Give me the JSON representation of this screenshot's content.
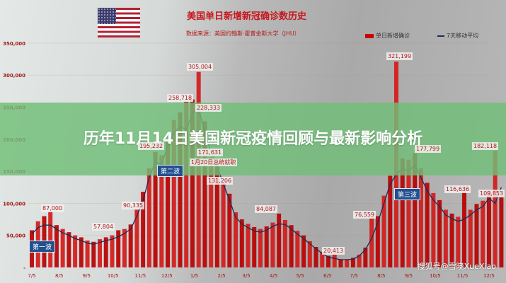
{
  "banner": {
    "title": "历年11月14日美国新冠疫情回顾与最新影响分析"
  },
  "watermark": "搜狐号@雪晓XueXiao",
  "chart_data": {
    "type": "bar",
    "title": "美国单日新增新冠确诊数历史",
    "subtitle": "数据来源：美国约翰斯·霍普金斯大学（JHU）",
    "legend": [
      "单日新增确诊",
      "7天移动平均"
    ],
    "legend_position": "top-right",
    "colors": {
      "bars": "#cc0000",
      "avg_line": "#1e2b5a"
    },
    "yticks": [
      "350,000",
      "300,000",
      "250,000",
      "200,000",
      "150,000",
      "100,000",
      "50,000",
      "-"
    ],
    "ylim": [
      0,
      350000
    ],
    "xticks": [
      "7/5",
      "8/5",
      "9/5",
      "10/5",
      "11/5",
      "12/5",
      "1/5",
      "2/5",
      "3/5",
      "4/5",
      "5/5",
      "6/5",
      "7/5",
      "8/5",
      "9/5",
      "10/5",
      "11/5",
      "12/5"
    ],
    "x_start": "2020/7/5",
    "x_step": "weekly",
    "daily_new_thousands": [
      58,
      72,
      80,
      87,
      66,
      60,
      55,
      50,
      47,
      42,
      40,
      44,
      47,
      50,
      58,
      60,
      67,
      90,
      118,
      155,
      180,
      175,
      195,
      230,
      242,
      259,
      262,
      305,
      228,
      172,
      170,
      131,
      115,
      86,
      75,
      68,
      63,
      60,
      64,
      70,
      84,
      74,
      66,
      57,
      50,
      41,
      32,
      24,
      18,
      20,
      13,
      13,
      15,
      20,
      31,
      77,
      80,
      112,
      143,
      321,
      170,
      168,
      178,
      155,
      132,
      116,
      105,
      90,
      84,
      79,
      117,
      90,
      99,
      104,
      120,
      182,
      110
    ],
    "avg_7day_thousands": [
      52,
      62,
      66,
      66,
      60,
      54,
      50,
      45,
      42,
      38,
      36,
      39,
      42,
      44,
      48,
      53,
      60,
      80,
      105,
      140,
      165,
      160,
      190,
      210,
      220,
      215,
      240,
      248,
      210,
      180,
      158,
      130,
      105,
      78,
      68,
      62,
      57,
      55,
      58,
      64,
      68,
      67,
      60,
      52,
      45,
      37,
      29,
      22,
      16,
      14,
      12,
      12,
      13,
      18,
      28,
      45,
      70,
      100,
      130,
      145,
      155,
      150,
      160,
      140,
      120,
      105,
      95,
      82,
      76,
      72,
      75,
      82,
      90,
      95,
      108,
      100,
      125
    ],
    "annotations": [
      "87,000",
      "57,804",
      "90,335",
      "195,232",
      "258,718",
      "305,004",
      "228,333",
      "171,631",
      "131,206",
      "84,087",
      "20,413",
      "76,559",
      "321,199",
      "177,799",
      "116,636",
      "182,118",
      "109,853"
    ],
    "event_note": "1月20日总统就职",
    "waves": [
      "第一波",
      "第二波",
      "第三波"
    ]
  }
}
